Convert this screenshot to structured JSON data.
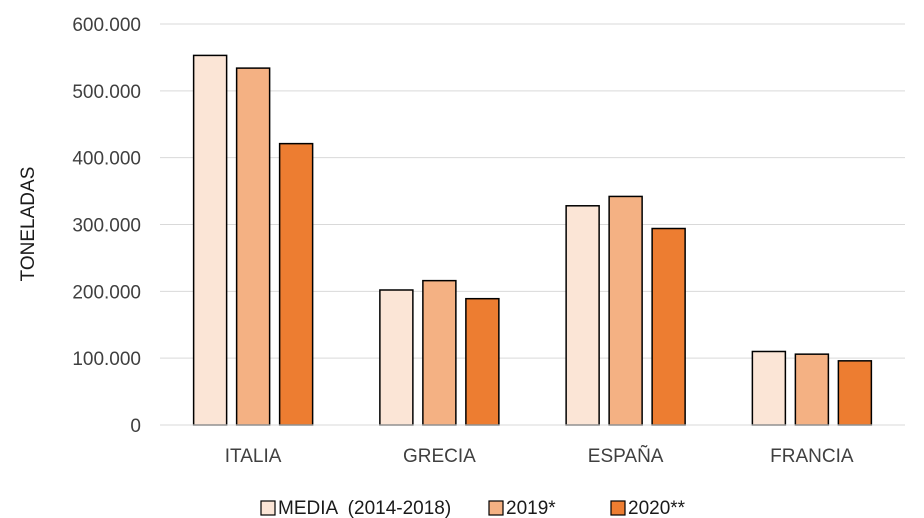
{
  "chart_data": {
    "type": "bar",
    "title": "",
    "xlabel": "",
    "ylabel": "TONELADAS",
    "categories": [
      "ITALIA",
      "GRECIA",
      "ESPAÑA",
      "FRANCIA"
    ],
    "ylim": [
      0,
      600000
    ],
    "yticks": [
      0,
      100000,
      200000,
      300000,
      400000,
      500000,
      600000
    ],
    "ytick_labels": [
      "0",
      "100.000",
      "200.000",
      "300.000",
      "400.000",
      "500.000",
      "600.000"
    ],
    "grid": "horizontal",
    "legend_position": "bottom",
    "series": [
      {
        "name": "MEDIA  (2014-2018)",
        "values": [
          553000,
          202000,
          328000,
          110000
        ],
        "color": "#fbe5d6"
      },
      {
        "name": "2019*",
        "values": [
          534000,
          216000,
          342000,
          106000
        ],
        "color": "#f4b183"
      },
      {
        "name": "2020**",
        "values": [
          421000,
          189000,
          294000,
          96000
        ],
        "color": "#ed7d31"
      }
    ]
  }
}
